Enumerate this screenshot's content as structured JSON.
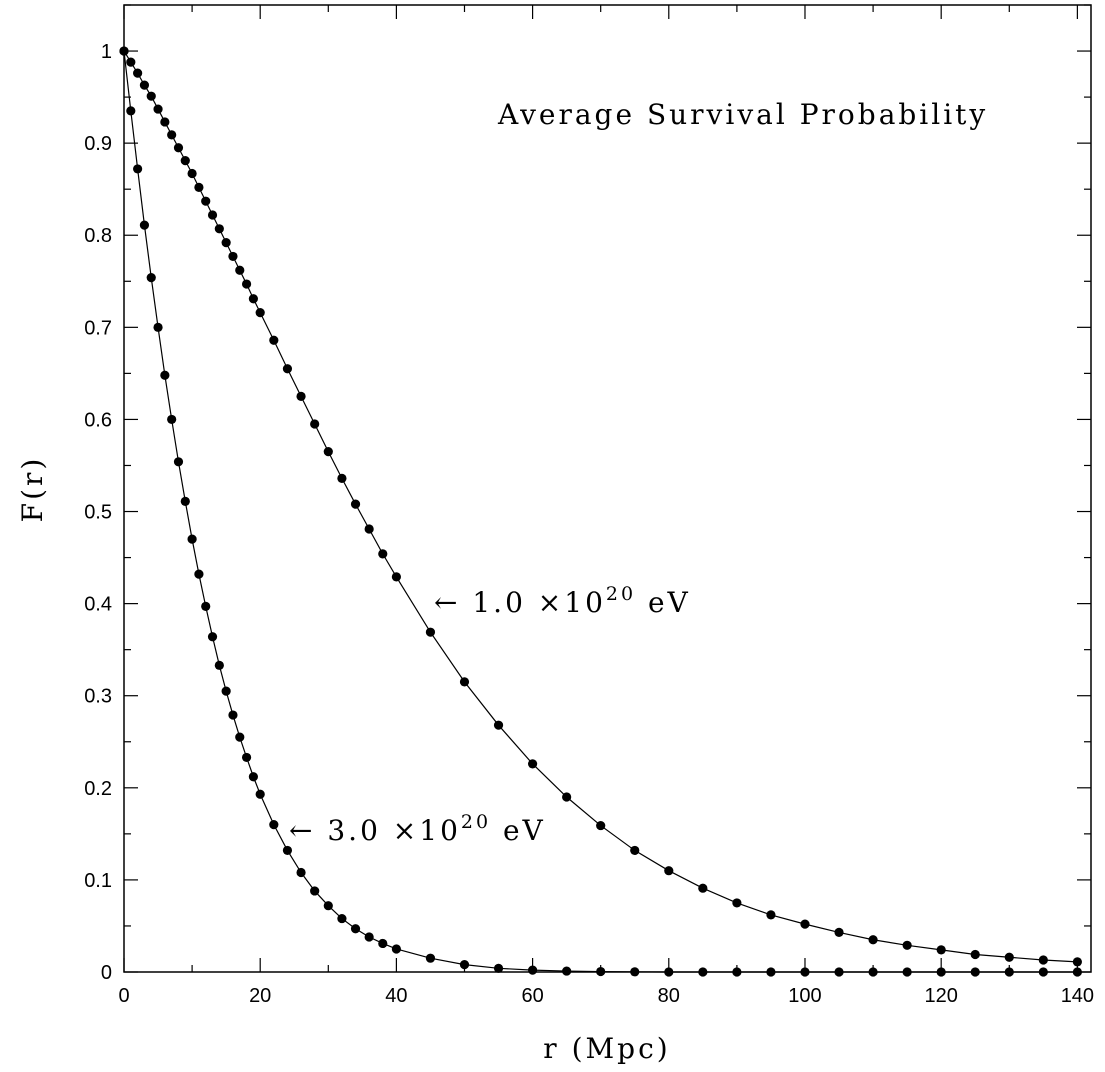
{
  "chart_data": {
    "type": "line",
    "title": "Average Survival Probability",
    "xlabel": "r (Mpc)",
    "ylabel": "F(r)",
    "xlim": [
      0,
      142
    ],
    "ylim": [
      0,
      1.05
    ],
    "x_ticks": [
      0,
      20,
      40,
      60,
      80,
      100,
      120,
      140
    ],
    "y_ticks": [
      0,
      0.1,
      0.2,
      0.3,
      0.4,
      0.5,
      0.6,
      0.7,
      0.8,
      0.9,
      1
    ],
    "x_tick_labels": [
      "0",
      "20",
      "40",
      "60",
      "80",
      "100",
      "120",
      "140"
    ],
    "y_tick_labels": [
      "0",
      "0.1",
      "0.2",
      "0.3",
      "0.4",
      "0.5",
      "0.6",
      "0.7",
      "0.8",
      "0.9",
      "1"
    ],
    "grid": false,
    "marker": "filled-circle",
    "series": [
      {
        "x": [
          0,
          1,
          2,
          3,
          4,
          5,
          6,
          7,
          8,
          9,
          10,
          11,
          12,
          13,
          14,
          15,
          16,
          17,
          18,
          19,
          20,
          22,
          24,
          26,
          28,
          30,
          32,
          34,
          36,
          38,
          40,
          45,
          50,
          55,
          60,
          65,
          70,
          75,
          80,
          85,
          90,
          95,
          100,
          105,
          110,
          115,
          120,
          125,
          130,
          135,
          140
        ],
        "y": [
          1.0,
          0.988,
          0.976,
          0.963,
          0.951,
          0.937,
          0.923,
          0.909,
          0.895,
          0.881,
          0.867,
          0.852,
          0.837,
          0.822,
          0.807,
          0.792,
          0.777,
          0.762,
          0.747,
          0.731,
          0.716,
          0.686,
          0.655,
          0.625,
          0.595,
          0.565,
          0.536,
          0.508,
          0.481,
          0.454,
          0.429,
          0.369,
          0.315,
          0.268,
          0.226,
          0.19,
          0.159,
          0.132,
          0.11,
          0.091,
          0.075,
          0.062,
          0.052,
          0.043,
          0.035,
          0.029,
          0.024,
          0.019,
          0.016,
          0.013,
          0.011
        ]
      },
      {
        "x": [
          0,
          1,
          2,
          3,
          4,
          5,
          6,
          7,
          8,
          9,
          10,
          11,
          12,
          13,
          14,
          15,
          16,
          17,
          18,
          19,
          20,
          22,
          24,
          26,
          28,
          30,
          32,
          34,
          36,
          38,
          40,
          45,
          50,
          55,
          60,
          65,
          70,
          75,
          80,
          85,
          90,
          95,
          100,
          105,
          110,
          115,
          120,
          125,
          130,
          135,
          140
        ],
        "y": [
          1.0,
          0.935,
          0.872,
          0.811,
          0.754,
          0.7,
          0.648,
          0.6,
          0.554,
          0.511,
          0.47,
          0.432,
          0.397,
          0.364,
          0.333,
          0.305,
          0.279,
          0.255,
          0.233,
          0.212,
          0.193,
          0.16,
          0.132,
          0.108,
          0.088,
          0.072,
          0.058,
          0.047,
          0.038,
          0.031,
          0.025,
          0.015,
          0.008,
          0.004,
          0.002,
          0.001,
          0.0005,
          0.0002,
          0.0,
          0.0,
          0.0,
          0.0,
          0.0,
          0.0,
          0.0,
          0.0,
          0.0,
          0.0,
          0.0,
          0.0,
          0.0
        ]
      }
    ],
    "annotations": [
      {
        "text": "← 1.0 ×10",
        "sup": "20",
        "unit": " eV",
        "x": 45,
        "y": 0.4
      },
      {
        "text": "← 3.0 ×10",
        "sup": "20",
        "unit": " eV",
        "x": 24,
        "y": 0.155
      }
    ]
  }
}
